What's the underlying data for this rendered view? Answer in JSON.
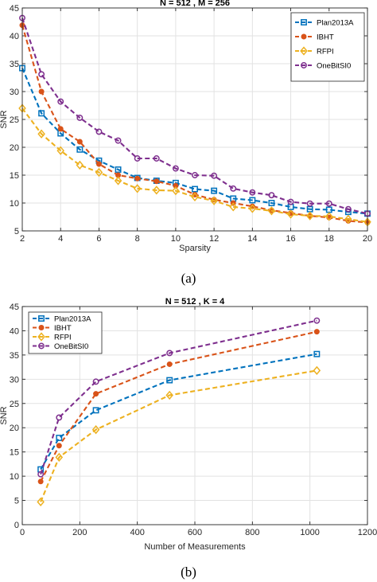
{
  "colors": {
    "Plan2013A": "#0072BD",
    "IBHT": "#D95319",
    "RFPI": "#EDB120",
    "OneBitSI0": "#7E2F8E"
  },
  "chart_data": [
    {
      "type": "line",
      "title": "N = 512 , M = 256",
      "xlabel": "Sparsity",
      "ylabel": "SNR",
      "caption": "(a)",
      "xlim": [
        2,
        20
      ],
      "ylim": [
        5,
        45
      ],
      "xticks": [
        2,
        4,
        6,
        8,
        10,
        12,
        14,
        16,
        18,
        20
      ],
      "yticks": [
        5,
        10,
        15,
        20,
        25,
        30,
        35,
        40,
        45
      ],
      "grid": true,
      "legend_position": "top-right",
      "x": [
        2,
        3,
        4,
        5,
        6,
        7,
        8,
        9,
        10,
        11,
        12,
        13,
        14,
        15,
        16,
        17,
        18,
        19,
        20
      ],
      "series": [
        {
          "name": "Plan2013A",
          "marker": "square",
          "values": [
            34.2,
            26.1,
            22.5,
            19.6,
            17.6,
            16.0,
            14.5,
            14.0,
            13.6,
            12.5,
            12.2,
            10.8,
            10.5,
            10.0,
            9.3,
            8.9,
            8.8,
            8.4,
            8.1
          ]
        },
        {
          "name": "IBHT",
          "marker": "circle",
          "values": [
            41.9,
            30.0,
            23.3,
            21.0,
            17.0,
            15.0,
            14.4,
            13.9,
            13.1,
            11.5,
            10.6,
            10.0,
            9.4,
            8.7,
            8.2,
            7.7,
            7.4,
            6.8,
            6.5
          ]
        },
        {
          "name": "RFPI",
          "marker": "diamond",
          "values": [
            27.0,
            22.4,
            19.4,
            16.8,
            15.5,
            14.0,
            12.6,
            12.3,
            12.2,
            11.1,
            10.4,
            9.3,
            9.0,
            8.6,
            8.0,
            7.7,
            7.6,
            7.1,
            6.6
          ]
        },
        {
          "name": "OneBitSI0",
          "marker": "circle-open",
          "values": [
            43.2,
            33.1,
            28.2,
            25.3,
            22.8,
            21.2,
            18.0,
            18.0,
            16.2,
            15.0,
            14.9,
            12.6,
            11.9,
            11.4,
            10.2,
            9.9,
            9.9,
            8.9,
            8.1
          ]
        }
      ]
    },
    {
      "type": "line",
      "title": "N = 512 , K = 4",
      "xlabel": "Number of Measurements",
      "ylabel": "SNR",
      "caption": "(b)",
      "xlim": [
        0,
        1200
      ],
      "ylim": [
        0,
        45
      ],
      "xticks": [
        0,
        200,
        400,
        600,
        800,
        1000,
        1200
      ],
      "yticks": [
        0,
        5,
        10,
        15,
        20,
        25,
        30,
        35,
        40,
        45
      ],
      "grid": true,
      "legend_position": "top-left",
      "x": [
        64,
        128,
        256,
        512,
        1024
      ],
      "series": [
        {
          "name": "Plan2013A",
          "marker": "square",
          "values": [
            11.4,
            17.9,
            23.6,
            29.8,
            35.2
          ]
        },
        {
          "name": "IBHT",
          "marker": "circle",
          "values": [
            8.9,
            16.3,
            27.0,
            33.1,
            39.8
          ]
        },
        {
          "name": "RFPI",
          "marker": "diamond",
          "values": [
            4.7,
            13.9,
            19.6,
            26.7,
            31.8
          ]
        },
        {
          "name": "OneBitSI0",
          "marker": "circle-open",
          "values": [
            10.4,
            22.1,
            29.5,
            35.4,
            42.1
          ]
        }
      ]
    }
  ]
}
